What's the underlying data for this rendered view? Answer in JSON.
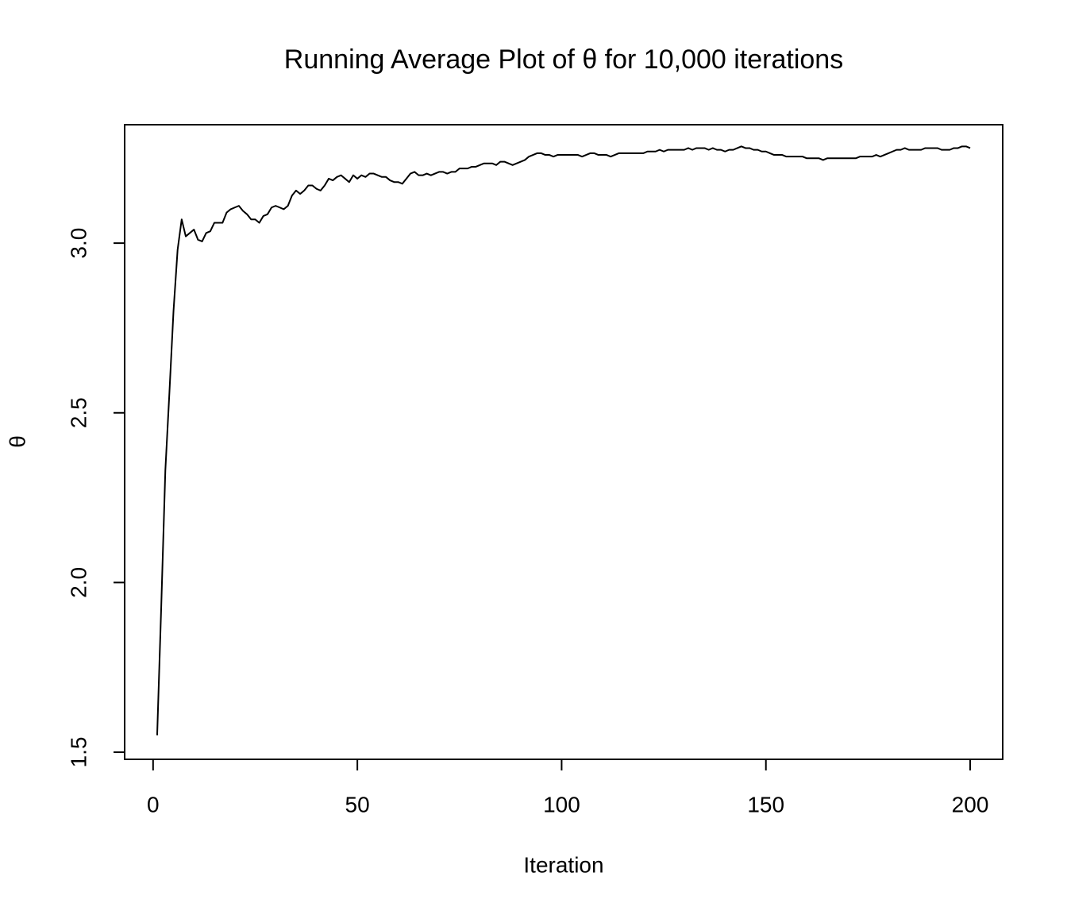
{
  "chart_data": {
    "type": "line",
    "title": "Running Average Plot of θ for 10,000 iterations",
    "x_label": "Iteration",
    "y_label": "θ",
    "color": "#000000",
    "x": [
      1,
      2,
      3,
      4,
      5,
      6,
      7,
      8,
      9,
      10,
      11,
      12,
      13,
      14,
      15,
      16,
      17,
      18,
      19,
      20,
      21,
      22,
      23,
      24,
      25,
      26,
      27,
      28,
      29,
      30,
      31,
      32,
      33,
      34,
      35,
      36,
      37,
      38,
      39,
      40,
      41,
      42,
      43,
      44,
      45,
      46,
      47,
      48,
      49,
      50,
      51,
      52,
      53,
      54,
      55,
      56,
      57,
      58,
      59,
      60,
      61,
      62,
      63,
      64,
      65,
      66,
      67,
      68,
      69,
      70,
      71,
      72,
      73,
      74,
      75,
      76,
      77,
      78,
      79,
      80,
      81,
      82,
      83,
      84,
      85,
      86,
      87,
      88,
      89,
      90,
      91,
      92,
      93,
      94,
      95,
      96,
      97,
      98,
      99,
      100,
      101,
      102,
      103,
      104,
      105,
      106,
      107,
      108,
      109,
      110,
      111,
      112,
      113,
      114,
      115,
      116,
      117,
      118,
      119,
      120,
      121,
      122,
      123,
      124,
      125,
      126,
      127,
      128,
      129,
      130,
      131,
      132,
      133,
      134,
      135,
      136,
      137,
      138,
      139,
      140,
      141,
      142,
      143,
      144,
      145,
      146,
      147,
      148,
      149,
      150,
      151,
      152,
      153,
      154,
      155,
      156,
      157,
      158,
      159,
      160,
      161,
      162,
      163,
      164,
      165,
      166,
      167,
      168,
      169,
      170,
      171,
      172,
      173,
      174,
      175,
      176,
      177,
      178,
      179,
      180,
      181,
      182,
      183,
      184,
      185,
      186,
      187,
      188,
      189,
      190,
      191,
      192,
      193,
      194,
      195,
      196,
      197,
      198,
      199,
      200
    ],
    "values": [
      1.55,
      1.93,
      2.33,
      2.56,
      2.8,
      2.98,
      3.07,
      3.02,
      3.03,
      3.04,
      3.01,
      3.005,
      3.03,
      3.035,
      3.06,
      3.06,
      3.06,
      3.09,
      3.1,
      3.105,
      3.11,
      3.095,
      3.085,
      3.07,
      3.07,
      3.06,
      3.08,
      3.085,
      3.105,
      3.11,
      3.105,
      3.1,
      3.11,
      3.14,
      3.155,
      3.145,
      3.155,
      3.17,
      3.17,
      3.16,
      3.155,
      3.17,
      3.19,
      3.185,
      3.195,
      3.2,
      3.19,
      3.18,
      3.2,
      3.19,
      3.2,
      3.195,
      3.205,
      3.205,
      3.2,
      3.195,
      3.195,
      3.185,
      3.18,
      3.18,
      3.175,
      3.19,
      3.205,
      3.21,
      3.2,
      3.2,
      3.205,
      3.2,
      3.205,
      3.21,
      3.21,
      3.205,
      3.21,
      3.21,
      3.22,
      3.22,
      3.22,
      3.225,
      3.225,
      3.23,
      3.235,
      3.235,
      3.235,
      3.23,
      3.24,
      3.24,
      3.235,
      3.23,
      3.235,
      3.24,
      3.245,
      3.255,
      3.26,
      3.265,
      3.265,
      3.26,
      3.26,
      3.255,
      3.26,
      3.26,
      3.26,
      3.26,
      3.26,
      3.26,
      3.255,
      3.26,
      3.265,
      3.265,
      3.26,
      3.26,
      3.26,
      3.255,
      3.26,
      3.265,
      3.265,
      3.265,
      3.265,
      3.265,
      3.265,
      3.265,
      3.27,
      3.27,
      3.27,
      3.275,
      3.27,
      3.275,
      3.275,
      3.275,
      3.275,
      3.275,
      3.28,
      3.275,
      3.28,
      3.28,
      3.28,
      3.275,
      3.28,
      3.275,
      3.275,
      3.27,
      3.275,
      3.275,
      3.28,
      3.285,
      3.28,
      3.28,
      3.275,
      3.275,
      3.27,
      3.27,
      3.265,
      3.26,
      3.26,
      3.26,
      3.255,
      3.255,
      3.255,
      3.255,
      3.255,
      3.25,
      3.25,
      3.25,
      3.25,
      3.245,
      3.25,
      3.25,
      3.25,
      3.25,
      3.25,
      3.25,
      3.25,
      3.25,
      3.255,
      3.255,
      3.255,
      3.255,
      3.26,
      3.255,
      3.26,
      3.265,
      3.27,
      3.275,
      3.275,
      3.28,
      3.275,
      3.275,
      3.275,
      3.275,
      3.28,
      3.28,
      3.28,
      3.28,
      3.275,
      3.275,
      3.275,
      3.28,
      3.28,
      3.285,
      3.285,
      3.28
    ],
    "xlim": [
      -6.96,
      207.96
    ],
    "ylim": [
      1.479,
      3.349
    ],
    "xticks": [
      0,
      50,
      100,
      150,
      200
    ],
    "yticks": [
      1.5,
      {
        "value": 2,
        "label": "2.0"
      },
      2.5,
      {
        "value": 3,
        "label": "3.0"
      }
    ]
  }
}
